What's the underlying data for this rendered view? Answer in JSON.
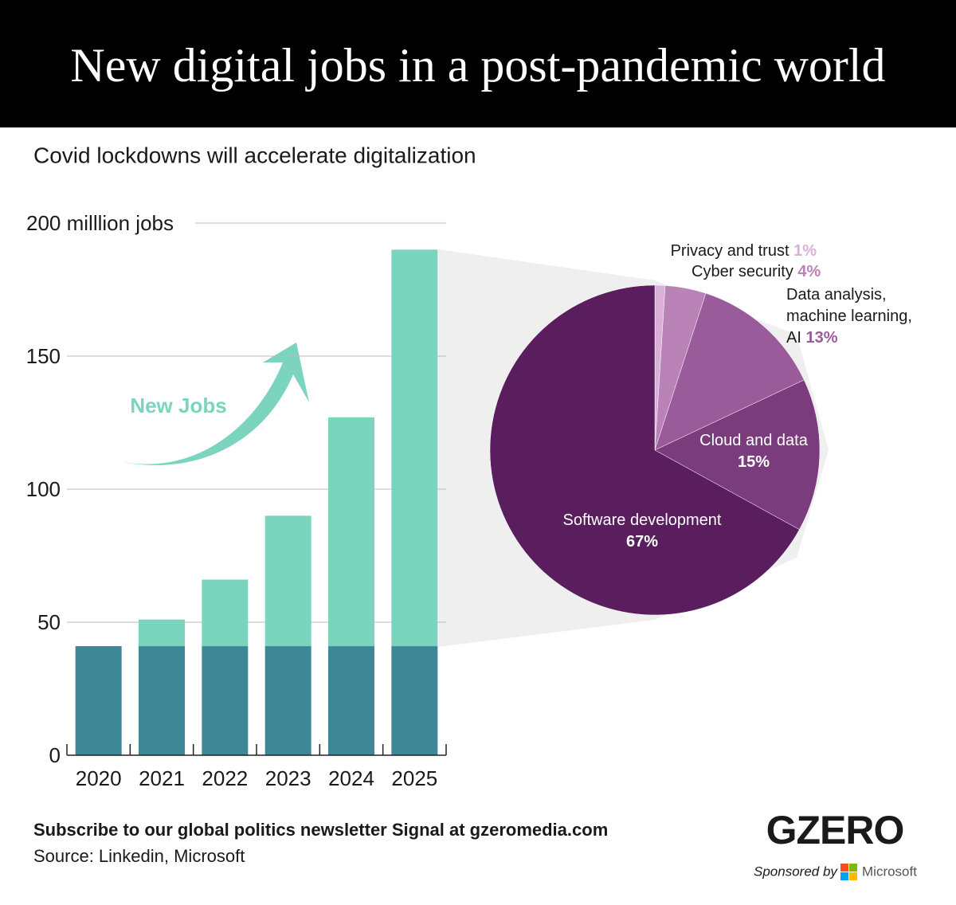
{
  "header": {
    "title": "New digital jobs in a post-pandemic world",
    "subtitle": "Covid lockdowns will accelerate digitalization"
  },
  "chart_data": [
    {
      "type": "bar",
      "stacked": true,
      "categories": [
        "2020",
        "2021",
        "2022",
        "2023",
        "2024",
        "2025"
      ],
      "series": [
        {
          "color": "#3d8797",
          "values": [
            41,
            41,
            41,
            41,
            41,
            41
          ]
        },
        {
          "name": "New Jobs",
          "color": "#7bd4bd",
          "values": [
            0,
            10,
            25,
            49,
            86,
            149
          ]
        }
      ],
      "ylim": [
        0,
        200
      ],
      "yticks": [
        0,
        50,
        100,
        150,
        {
          "value": 200,
          "label": "200 milllion jobs"
        }
      ],
      "grid": true
    },
    {
      "type": "pie",
      "categories": [
        "Privacy and trust",
        "Cyber security",
        "Data analysis, machine learning, AI",
        "Cloud and data",
        "Software development"
      ],
      "values": [
        1,
        4,
        13,
        15,
        67
      ],
      "value_labels": [
        "1%",
        "4%",
        "13%",
        "15%",
        "67%"
      ],
      "colors": [
        "#d9b0d9",
        "#b983b8",
        "#9a5b9a",
        "#7b3c7e",
        "#5a1d5e"
      ]
    }
  ],
  "footer": {
    "subscribe": "Subscribe to our global politics newsletter Signal at gzeromedia.com",
    "source": "Source: Linkedin, Microsoft",
    "logo": "GZERO",
    "sponsored": "Sponsored by",
    "sponsor": "Microsoft"
  }
}
